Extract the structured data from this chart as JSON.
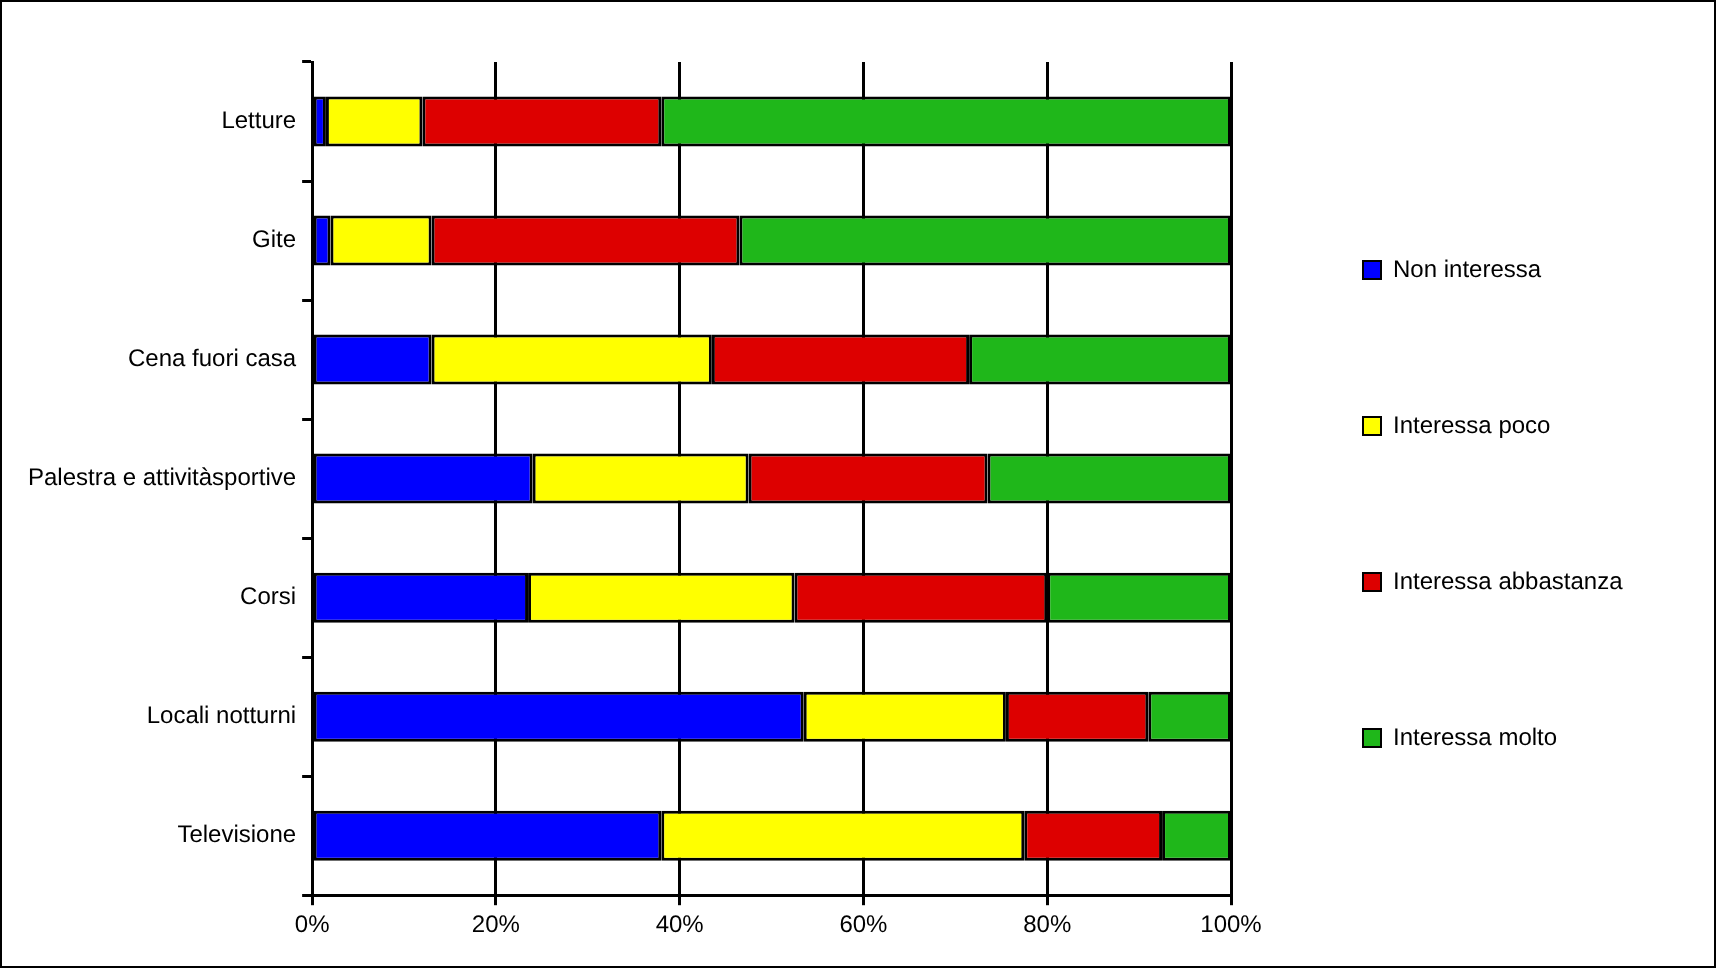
{
  "chart_data": {
    "type": "bar",
    "orientation": "horizontal",
    "stacked": true,
    "categories": [
      "Letture",
      "Gite",
      "Cena fuori casa",
      "Palestra e attivitàsportive",
      "Corsi",
      "Locali notturni",
      "Televisione"
    ],
    "series": [
      {
        "name": "Non interessa",
        "color": "#0000ff",
        "values": [
          1.5,
          2,
          13,
          24,
          23.5,
          53.5,
          38
        ]
      },
      {
        "name": "Interessa poco",
        "color": "#ffff00",
        "values": [
          10.5,
          11,
          30.5,
          23.5,
          29,
          22,
          39.5
        ]
      },
      {
        "name": "Interessa abbastanza",
        "color": "#dd0000",
        "values": [
          26,
          33.5,
          28,
          26,
          27.5,
          15.5,
          15
        ]
      },
      {
        "name": "Interessa molto",
        "color": "#1fb71a",
        "values": [
          62,
          53.5,
          28.5,
          26.5,
          20,
          9,
          7.5
        ]
      }
    ],
    "xlim": [
      0,
      100
    ],
    "xticks": [
      {
        "value": 0,
        "label": "0%"
      },
      {
        "value": 20,
        "label": "20%"
      },
      {
        "value": 40,
        "label": "40%"
      },
      {
        "value": 60,
        "label": "60%"
      },
      {
        "value": 80,
        "label": "80%"
      },
      {
        "value": 100,
        "label": "100%"
      }
    ],
    "grid": "x",
    "legend": "right"
  }
}
